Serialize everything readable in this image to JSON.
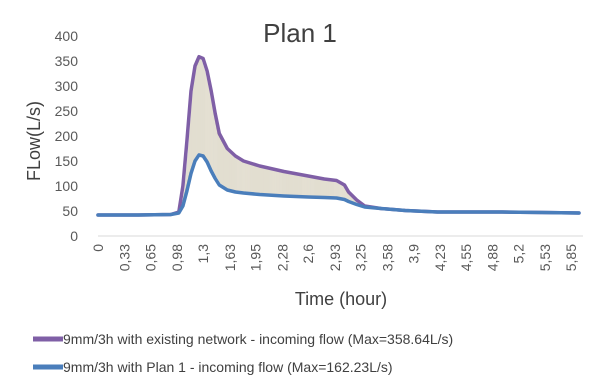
{
  "chart_data": {
    "type": "line",
    "title": "Plan 1",
    "xlabel": "Time (hour)",
    "ylabel": "FLow(L/s)",
    "ylim": [
      0,
      400
    ],
    "yticks": [
      0,
      50,
      100,
      150,
      200,
      250,
      300,
      350,
      400
    ],
    "xlim": [
      0,
      6
    ],
    "xtick_labels": [
      "0",
      "0,33",
      "0,65",
      "0,98",
      "1,3",
      "1,63",
      "1,95",
      "2,28",
      "2,6",
      "2,93",
      "3,25",
      "3,58",
      "3,9",
      "4,23",
      "4,55",
      "4,88",
      "5,2",
      "5,53",
      "5,85"
    ],
    "xtick_values": [
      0,
      0.33,
      0.65,
      0.98,
      1.3,
      1.63,
      1.95,
      2.28,
      2.6,
      2.93,
      3.25,
      3.58,
      3.9,
      4.23,
      4.55,
      4.88,
      5.2,
      5.53,
      5.85
    ],
    "grid": false,
    "legend_position": "bottom",
    "fill_between_series": true,
    "series": [
      {
        "name": "9mm/3h with existing network - incoming flow (Max=358.64L/s)",
        "color": "#7F5FA6",
        "x": [
          0,
          0.5,
          0.9,
          1.0,
          1.05,
          1.1,
          1.15,
          1.2,
          1.25,
          1.3,
          1.35,
          1.4,
          1.45,
          1.5,
          1.6,
          1.7,
          1.8,
          2.0,
          2.3,
          2.6,
          2.8,
          2.95,
          3.05,
          3.1,
          3.2,
          3.3,
          3.5,
          3.8,
          4.2,
          4.6,
          5.0,
          5.5,
          5.95
        ],
        "y": [
          42,
          42,
          43,
          48,
          100,
          190,
          290,
          340,
          358.64,
          355,
          330,
          290,
          245,
          205,
          175,
          160,
          150,
          140,
          129,
          120,
          114,
          111,
          102,
          88,
          72,
          60,
          55,
          51,
          48,
          48,
          48,
          47,
          46
        ]
      },
      {
        "name": "9mm/3h with Plan 1 - incoming flow (Max=162.23L/s)",
        "color": "#4A7EBB",
        "x": [
          0,
          0.5,
          0.9,
          1.0,
          1.05,
          1.1,
          1.15,
          1.2,
          1.25,
          1.3,
          1.35,
          1.4,
          1.45,
          1.5,
          1.6,
          1.7,
          1.8,
          2.0,
          2.3,
          2.6,
          2.8,
          2.95,
          3.05,
          3.1,
          3.2,
          3.3,
          3.5,
          3.8,
          4.2,
          4.6,
          5.0,
          5.5,
          5.95
        ],
        "y": [
          42,
          42,
          43,
          46,
          60,
          90,
          125,
          150,
          162.23,
          160,
          148,
          130,
          115,
          102,
          92,
          88,
          86,
          83,
          80,
          78,
          77,
          76,
          73,
          69,
          63,
          58,
          55,
          51,
          48,
          48,
          48,
          47,
          46
        ]
      }
    ]
  }
}
